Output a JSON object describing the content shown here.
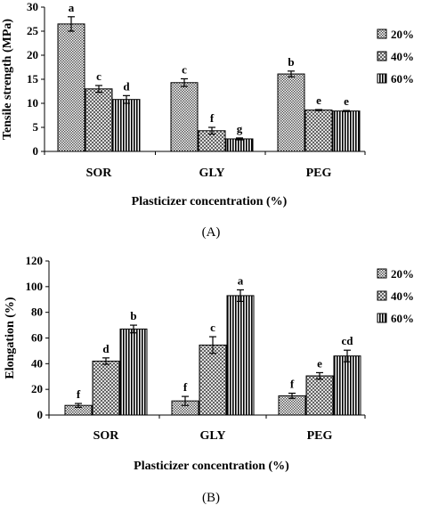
{
  "chart_data": [
    {
      "type": "bar",
      "panel_label": "(A)",
      "categories": [
        "SOR",
        "GLY",
        "PEG"
      ],
      "series": [
        {
          "name": "20%",
          "values": [
            26.5,
            14.3,
            16.1
          ],
          "errors": [
            1.5,
            0.8,
            0.6
          ],
          "labels": [
            "a",
            "c",
            "b"
          ]
        },
        {
          "name": "40%",
          "values": [
            13.0,
            4.3,
            8.6
          ],
          "errors": [
            0.7,
            0.7,
            0.1
          ],
          "labels": [
            "c",
            "f",
            "e"
          ]
        },
        {
          "name": "60%",
          "values": [
            10.8,
            2.6,
            8.4
          ],
          "errors": [
            0.8,
            0.2,
            0.1
          ],
          "labels": [
            "d",
            "g",
            "e"
          ]
        }
      ],
      "xlabel": "Plasticizer concentration (%)",
      "ylabel": "Tensile strength (MPa)",
      "ylim": [
        0,
        30
      ],
      "yticks": [
        0,
        5,
        10,
        15,
        20,
        25,
        30
      ],
      "legend_position": "right",
      "grid": false
    },
    {
      "type": "bar",
      "panel_label": "(B)",
      "categories": [
        "SOR",
        "GLY",
        "PEG"
      ],
      "series": [
        {
          "name": "20%",
          "values": [
            7.5,
            11,
            15
          ],
          "errors": [
            1.5,
            3.5,
            2
          ],
          "labels": [
            "f",
            "f",
            "f"
          ]
        },
        {
          "name": "40%",
          "values": [
            42,
            54.5,
            30.5
          ],
          "errors": [
            2.5,
            6.5,
            2.5
          ],
          "labels": [
            "d",
            "c",
            "e"
          ]
        },
        {
          "name": "60%",
          "values": [
            67,
            93,
            46
          ],
          "errors": [
            3,
            4.5,
            4.5
          ],
          "labels": [
            "b",
            "a",
            "cd"
          ]
        }
      ],
      "xlabel": "Plasticizer concentration (%)",
      "ylabel": "Elongation (%)",
      "ylim": [
        0,
        120
      ],
      "yticks": [
        0,
        20,
        40,
        60,
        80,
        100,
        120
      ],
      "legend_position": "right",
      "grid": false
    }
  ]
}
